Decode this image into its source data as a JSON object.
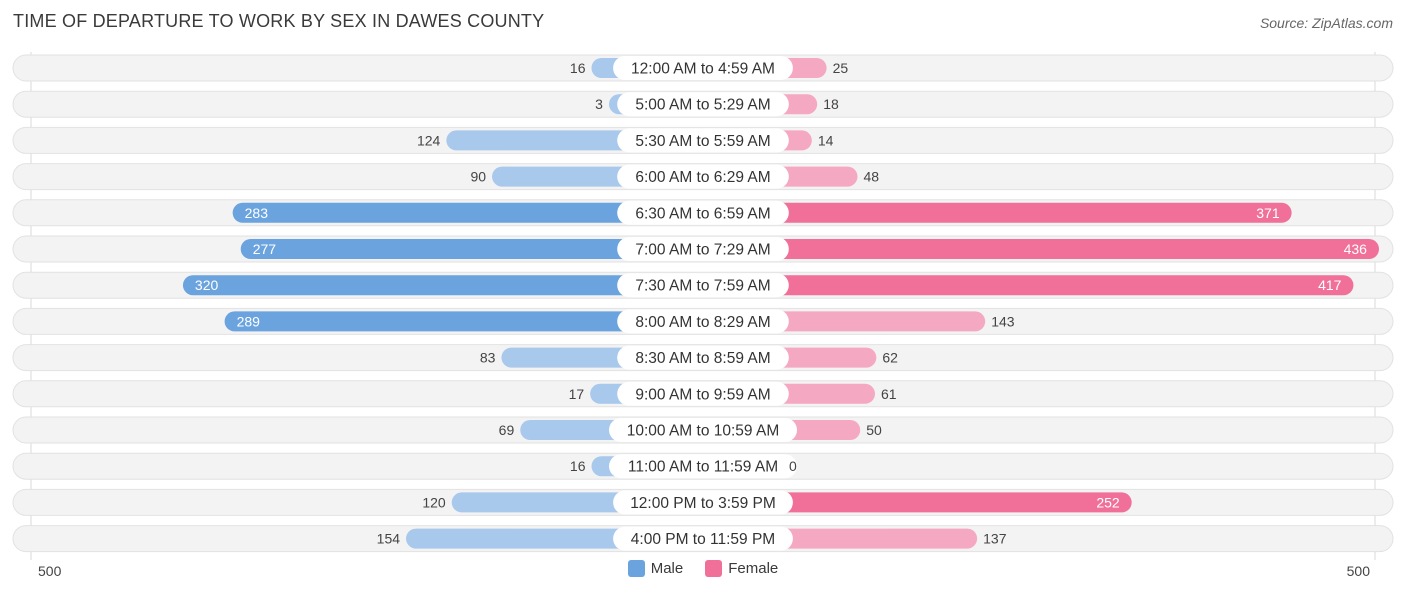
{
  "header": {
    "title": "TIME OF DEPARTURE TO WORK BY SEX IN DAWES COUNTY",
    "source": "Source: ZipAtlas.com"
  },
  "axis": {
    "left_label": "500",
    "right_label": "500"
  },
  "legend": {
    "male_label": "Male",
    "female_label": "Female"
  },
  "colors": {
    "male_strong": "#6aa3de",
    "male_light": "#a8c8ec",
    "female_strong": "#f07099",
    "female_light": "#f5a8c2",
    "row_bg": "#f3f3f3",
    "row_border": "#e2e2e2"
  },
  "chart_data": {
    "type": "bar",
    "orientation": "horizontal-diverging",
    "title": "TIME OF DEPARTURE TO WORK BY SEX IN DAWES COUNTY",
    "xlim": [
      -500,
      500
    ],
    "categories": [
      "12:00 AM to 4:59 AM",
      "5:00 AM to 5:29 AM",
      "5:30 AM to 5:59 AM",
      "6:00 AM to 6:29 AM",
      "6:30 AM to 6:59 AM",
      "7:00 AM to 7:29 AM",
      "7:30 AM to 7:59 AM",
      "8:00 AM to 8:29 AM",
      "8:30 AM to 8:59 AM",
      "9:00 AM to 9:59 AM",
      "10:00 AM to 10:59 AM",
      "11:00 AM to 11:59 AM",
      "12:00 PM to 3:59 PM",
      "4:00 PM to 11:59 PM"
    ],
    "series": [
      {
        "name": "Male",
        "values": [
          16,
          3,
          124,
          90,
          283,
          277,
          320,
          289,
          83,
          17,
          69,
          16,
          120,
          154
        ]
      },
      {
        "name": "Female",
        "values": [
          25,
          18,
          14,
          48,
          371,
          436,
          417,
          143,
          62,
          61,
          50,
          0,
          252,
          137
        ]
      }
    ],
    "legend_position": "bottom-center"
  }
}
